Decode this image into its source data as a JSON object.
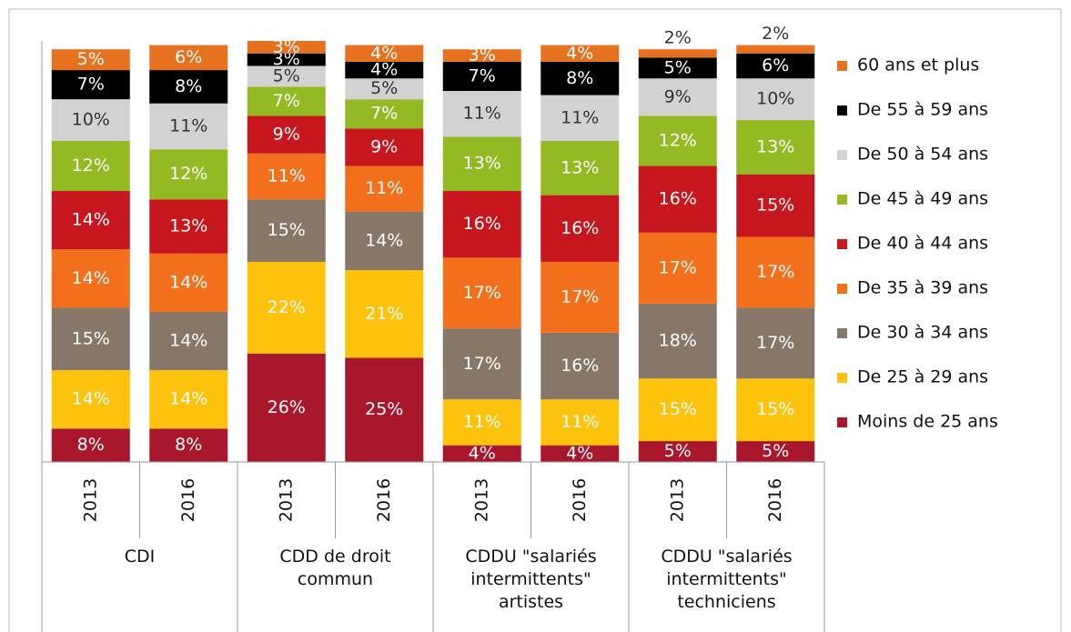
{
  "chart_data": {
    "type": "stacked_bar",
    "groups": [
      {
        "name": "CDI",
        "years": [
          "2013",
          "2016"
        ]
      },
      {
        "name": "CDD de droit\ncommun",
        "years": [
          "2013",
          "2016"
        ]
      },
      {
        "name": "CDDU \"salariés\nintermittents\"\nartistes",
        "years": [
          "2013",
          "2016"
        ]
      },
      {
        "name": "CDDU \"salariés\nintermittents\"\ntechniciens",
        "years": [
          "2013",
          "2016"
        ]
      }
    ],
    "series": [
      {
        "name": "Moins de 25 ans",
        "color": "#a8172b",
        "values": [
          8,
          8,
          26,
          25,
          4,
          4,
          5,
          5
        ],
        "value_labels": [
          "8%",
          "8%",
          "26%",
          "25%",
          "4%",
          "4%",
          "5%",
          "5%"
        ]
      },
      {
        "name": "De 25 à 29 ans",
        "color": "#fcc20c",
        "values": [
          14,
          14,
          22,
          21,
          11,
          11,
          15,
          15
        ],
        "value_labels": [
          "14%",
          "14%",
          "22%",
          "21%",
          "11%",
          "11%",
          "15%",
          "15%"
        ]
      },
      {
        "name": "De 30 à 34 ans",
        "color": "#877769",
        "values": [
          15,
          14,
          15,
          14,
          17,
          16,
          18,
          17
        ],
        "value_labels": [
          "15%",
          "14%",
          "15%",
          "14%",
          "17%",
          "16%",
          "18%",
          "17%"
        ]
      },
      {
        "name": "De 35 à 39 ans",
        "color": "#f26f1c",
        "values": [
          14,
          14,
          11,
          11,
          17,
          17,
          17,
          17
        ],
        "value_labels": [
          "14%",
          "14%",
          "11%",
          "11%",
          "17%",
          "17%",
          "17%",
          "17%"
        ]
      },
      {
        "name": "De 40 à 44 ans",
        "color": "#c6161e",
        "values": [
          14,
          13,
          9,
          9,
          16,
          16,
          16,
          15
        ],
        "value_labels": [
          "14%",
          "13%",
          "9%",
          "9%",
          "16%",
          "16%",
          "16%",
          "15%"
        ]
      },
      {
        "name": "De 45 à 49 ans",
        "color": "#93b923",
        "values": [
          12,
          12,
          7,
          7,
          13,
          13,
          12,
          13
        ],
        "value_labels": [
          "12%",
          "12%",
          "7%",
          "7%",
          "13%",
          "13%",
          "12%",
          "13%"
        ]
      },
      {
        "name": "De 50 à 54 ans",
        "color": "#d2d2d2",
        "values": [
          10,
          11,
          5,
          5,
          11,
          11,
          9,
          10
        ],
        "value_labels": [
          "10%",
          "11%",
          "5%",
          "5%",
          "11%",
          "11%",
          "9%",
          "10%"
        ]
      },
      {
        "name": "De 55 à 59 ans",
        "color": "#000000",
        "values": [
          7,
          8,
          3,
          4,
          7,
          8,
          5,
          6
        ],
        "value_labels": [
          "7%",
          "8%",
          "3%",
          "4%",
          "7%",
          "8%",
          "5%",
          "6%"
        ]
      },
      {
        "name": "60 ans et plus",
        "color": "#e6721f",
        "values": [
          5,
          6,
          3,
          4,
          3,
          4,
          2,
          2
        ],
        "value_labels": [
          "5%",
          "6%",
          "3%",
          "4%",
          "3%",
          "4%",
          "2%",
          "2%"
        ]
      }
    ]
  }
}
